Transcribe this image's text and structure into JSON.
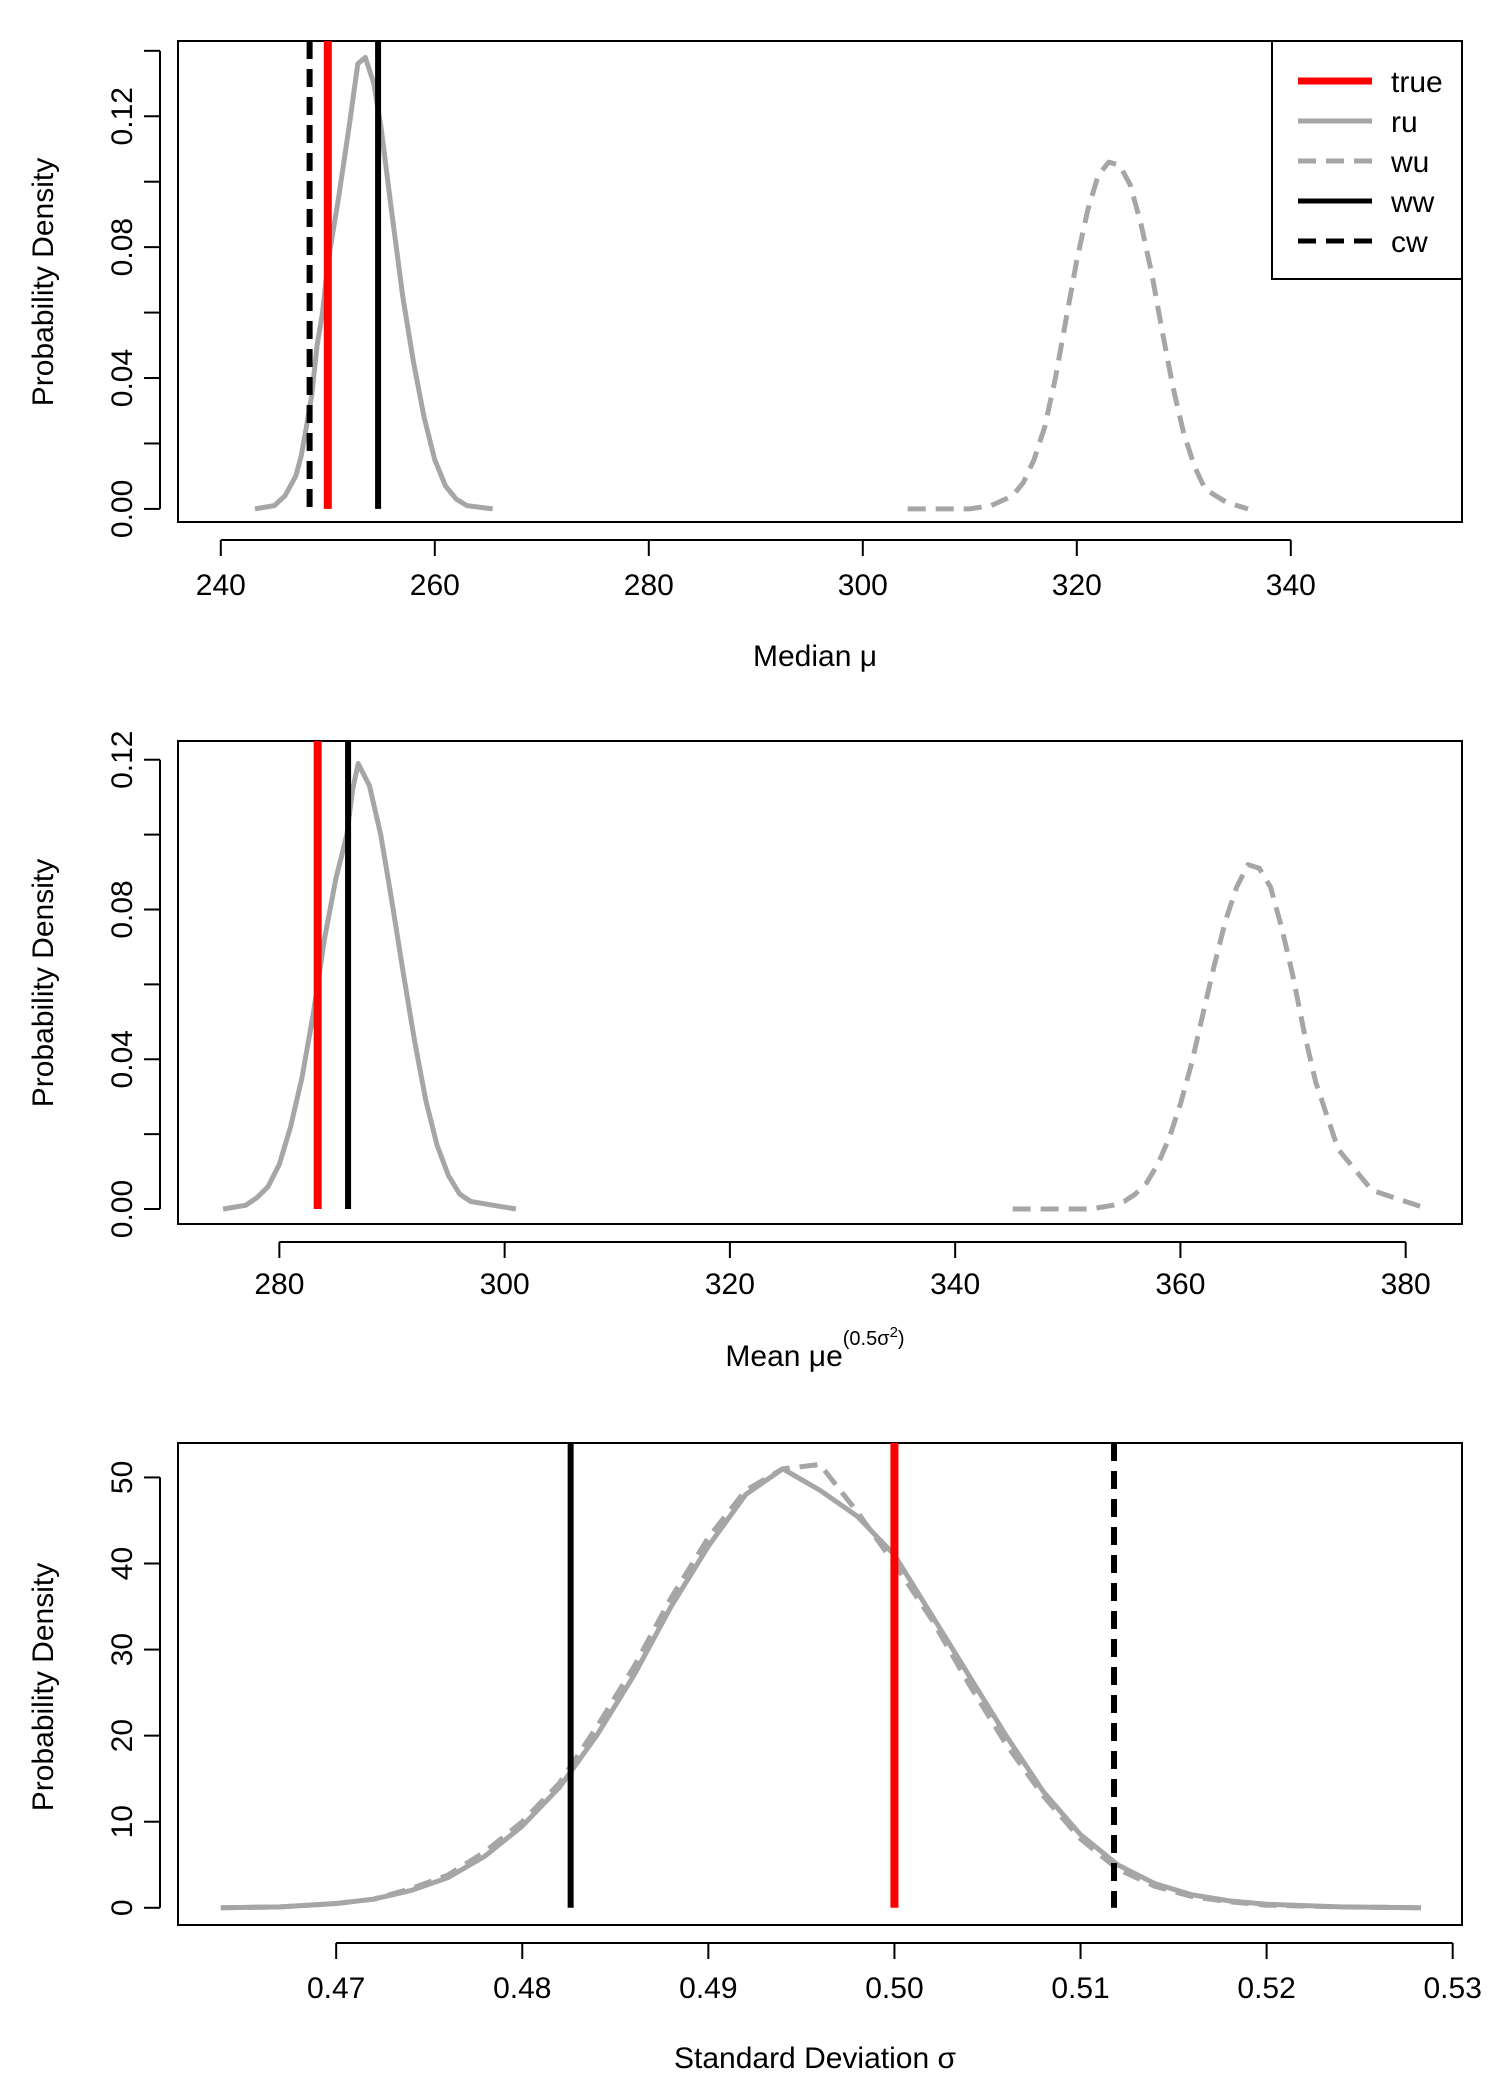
{
  "chart_data": [
    {
      "type": "line",
      "xlabel": "Median μ",
      "ylabel": "Probability Density",
      "xlim": [
        236,
        356
      ],
      "ylim": [
        -0.004,
        0.143
      ],
      "xticks": [
        "240",
        "260",
        "280",
        "300",
        "320",
        "340"
      ],
      "yticks": [
        "0.00",
        "0.04",
        "0.08",
        "0.12"
      ],
      "ytick_minor": [
        0.02,
        0.06,
        0.1,
        0.14
      ],
      "legend": {
        "position": "top-right",
        "entries": [
          {
            "label": "true",
            "color": "#ff0000",
            "dash": "solid"
          },
          {
            "label": "ru",
            "color": "#a6a6a6",
            "dash": "solid"
          },
          {
            "label": "wu",
            "color": "#a6a6a6",
            "dash": "dashed"
          },
          {
            "label": "ww",
            "color": "#000000",
            "dash": "solid"
          },
          {
            "label": "cw",
            "color": "#000000",
            "dash": "dashed"
          }
        ]
      },
      "series": [
        {
          "name": "ru",
          "color": "#a6a6a6",
          "dash": "solid",
          "x": [
            243.2,
            245,
            246,
            247,
            247.5,
            248,
            248.5,
            249,
            249.5,
            250,
            251,
            252,
            252.8,
            253.5,
            254.3,
            255,
            256,
            257,
            258,
            259,
            260,
            261,
            262,
            263,
            265.4
          ],
          "y": [
            0,
            0.001,
            0.004,
            0.01,
            0.016,
            0.025,
            0.035,
            0.05,
            0.06,
            0.075,
            0.095,
            0.117,
            0.136,
            0.138,
            0.13,
            0.116,
            0.09,
            0.065,
            0.045,
            0.028,
            0.015,
            0.007,
            0.003,
            0.001,
            0
          ]
        },
        {
          "name": "wu",
          "color": "#a6a6a6",
          "dash": "dashed",
          "x": [
            304.2,
            307,
            310,
            312,
            314,
            315,
            316,
            317,
            318,
            319,
            320,
            321,
            322,
            323,
            324,
            325,
            326,
            327,
            328,
            329,
            330,
            331,
            332,
            334,
            336
          ],
          "y": [
            0,
            0,
            0,
            0.001,
            0.004,
            0.008,
            0.015,
            0.025,
            0.04,
            0.058,
            0.076,
            0.091,
            0.102,
            0.106,
            0.105,
            0.099,
            0.087,
            0.072,
            0.054,
            0.037,
            0.023,
            0.013,
            0.006,
            0.002,
            0
          ]
        },
        {
          "name": "true",
          "color": "#ff0000",
          "vline": 250
        },
        {
          "name": "ww",
          "color": "#000000",
          "vline": 254.7
        },
        {
          "name": "cw",
          "color": "#000000",
          "vline": 248.3,
          "dash": "dashed"
        }
      ]
    },
    {
      "type": "line",
      "xlabel": "Mean μe",
      "xlabel_sup": "(0.5σ",
      "xlabel_sup2": "2",
      "xlabel_sup_close": ")",
      "ylabel": "Probability Density",
      "xlim": [
        271,
        385
      ],
      "ylim": [
        -0.004,
        0.125
      ],
      "xticks": [
        "280",
        "300",
        "320",
        "340",
        "360",
        "380"
      ],
      "yticks": [
        "0.00",
        "0.04",
        "0.08",
        "0.12"
      ],
      "ytick_minor": [
        0.02,
        0.06,
        0.1
      ],
      "series": [
        {
          "name": "ru",
          "color": "#a6a6a6",
          "dash": "solid",
          "x": [
            275,
            277,
            278,
            279,
            280,
            281,
            282,
            283,
            284,
            285,
            286,
            286.5,
            287,
            288,
            289,
            290,
            291,
            292,
            293,
            294,
            295,
            296,
            297,
            299,
            301
          ],
          "y": [
            0,
            0.001,
            0.003,
            0.006,
            0.012,
            0.022,
            0.035,
            0.052,
            0.072,
            0.088,
            0.1,
            0.112,
            0.119,
            0.113,
            0.1,
            0.082,
            0.063,
            0.045,
            0.029,
            0.017,
            0.009,
            0.004,
            0.002,
            0.001,
            0
          ]
        },
        {
          "name": "wu",
          "color": "#a6a6a6",
          "dash": "dashed",
          "x": [
            345.1,
            349,
            352,
            354,
            355,
            356,
            357,
            358,
            359,
            360,
            361,
            362,
            363,
            364,
            365,
            366,
            367,
            368,
            369,
            370,
            371,
            372,
            374,
            377,
            382
          ],
          "y": [
            0,
            0,
            0,
            0.001,
            0.002,
            0.004,
            0.007,
            0.012,
            0.019,
            0.028,
            0.039,
            0.052,
            0.065,
            0.077,
            0.086,
            0.092,
            0.091,
            0.086,
            0.075,
            0.062,
            0.047,
            0.034,
            0.016,
            0.005,
            0
          ]
        },
        {
          "name": "true",
          "color": "#ff0000",
          "vline": 283.4
        },
        {
          "name": "ww",
          "color": "#000000",
          "vline": 286.1
        }
      ]
    },
    {
      "type": "line",
      "xlabel": "Standard Deviation σ",
      "ylabel": "Probability Density",
      "xlim": [
        0.4615,
        0.5305
      ],
      "ylim": [
        -2,
        54
      ],
      "xticks": [
        "0.47",
        "0.48",
        "0.49",
        "0.50",
        "0.51",
        "0.52",
        "0.53"
      ],
      "yticks": [
        "0",
        "10",
        "20",
        "30",
        "40",
        "50"
      ],
      "series": [
        {
          "name": "ru",
          "color": "#a6a6a6",
          "dash": "solid",
          "x": [
            0.4638,
            0.467,
            0.47,
            0.472,
            0.474,
            0.476,
            0.478,
            0.48,
            0.482,
            0.484,
            0.486,
            0.488,
            0.49,
            0.492,
            0.494,
            0.496,
            0.498,
            0.5,
            0.502,
            0.504,
            0.506,
            0.508,
            0.51,
            0.512,
            0.514,
            0.516,
            0.518,
            0.52,
            0.524,
            0.5283
          ],
          "y": [
            0,
            0.1,
            0.5,
            1,
            2,
            3.5,
            6,
            9.5,
            14,
            20,
            27,
            35,
            42,
            48,
            51,
            48.5,
            45.5,
            41,
            34,
            27,
            20,
            13.5,
            8.5,
            5,
            2.8,
            1.5,
            0.8,
            0.4,
            0.1,
            0
          ]
        },
        {
          "name": "wu",
          "color": "#a6a6a6",
          "dash": "dashed",
          "x": [
            0.4638,
            0.467,
            0.47,
            0.472,
            0.474,
            0.476,
            0.478,
            0.48,
            0.482,
            0.484,
            0.486,
            0.488,
            0.49,
            0.492,
            0.494,
            0.496,
            0.498,
            0.5,
            0.502,
            0.504,
            0.506,
            0.508,
            0.51,
            0.512,
            0.514,
            0.516,
            0.518,
            0.52,
            0.524,
            0.5283
          ],
          "y": [
            0,
            0.1,
            0.5,
            1,
            2.2,
            3.8,
            6.5,
            10,
            14.5,
            21,
            28,
            36,
            43,
            48.5,
            51,
            51.5,
            46,
            40,
            33.5,
            26,
            19,
            13,
            8,
            4.5,
            2.5,
            1.3,
            0.7,
            0.3,
            0.1,
            0
          ]
        },
        {
          "name": "true",
          "color": "#ff0000",
          "vline": 0.5
        },
        {
          "name": "ww",
          "color": "#000000",
          "vline": 0.4826
        },
        {
          "name": "cw",
          "color": "#000000",
          "vline": 0.5118,
          "dash": "dashed"
        }
      ]
    }
  ]
}
